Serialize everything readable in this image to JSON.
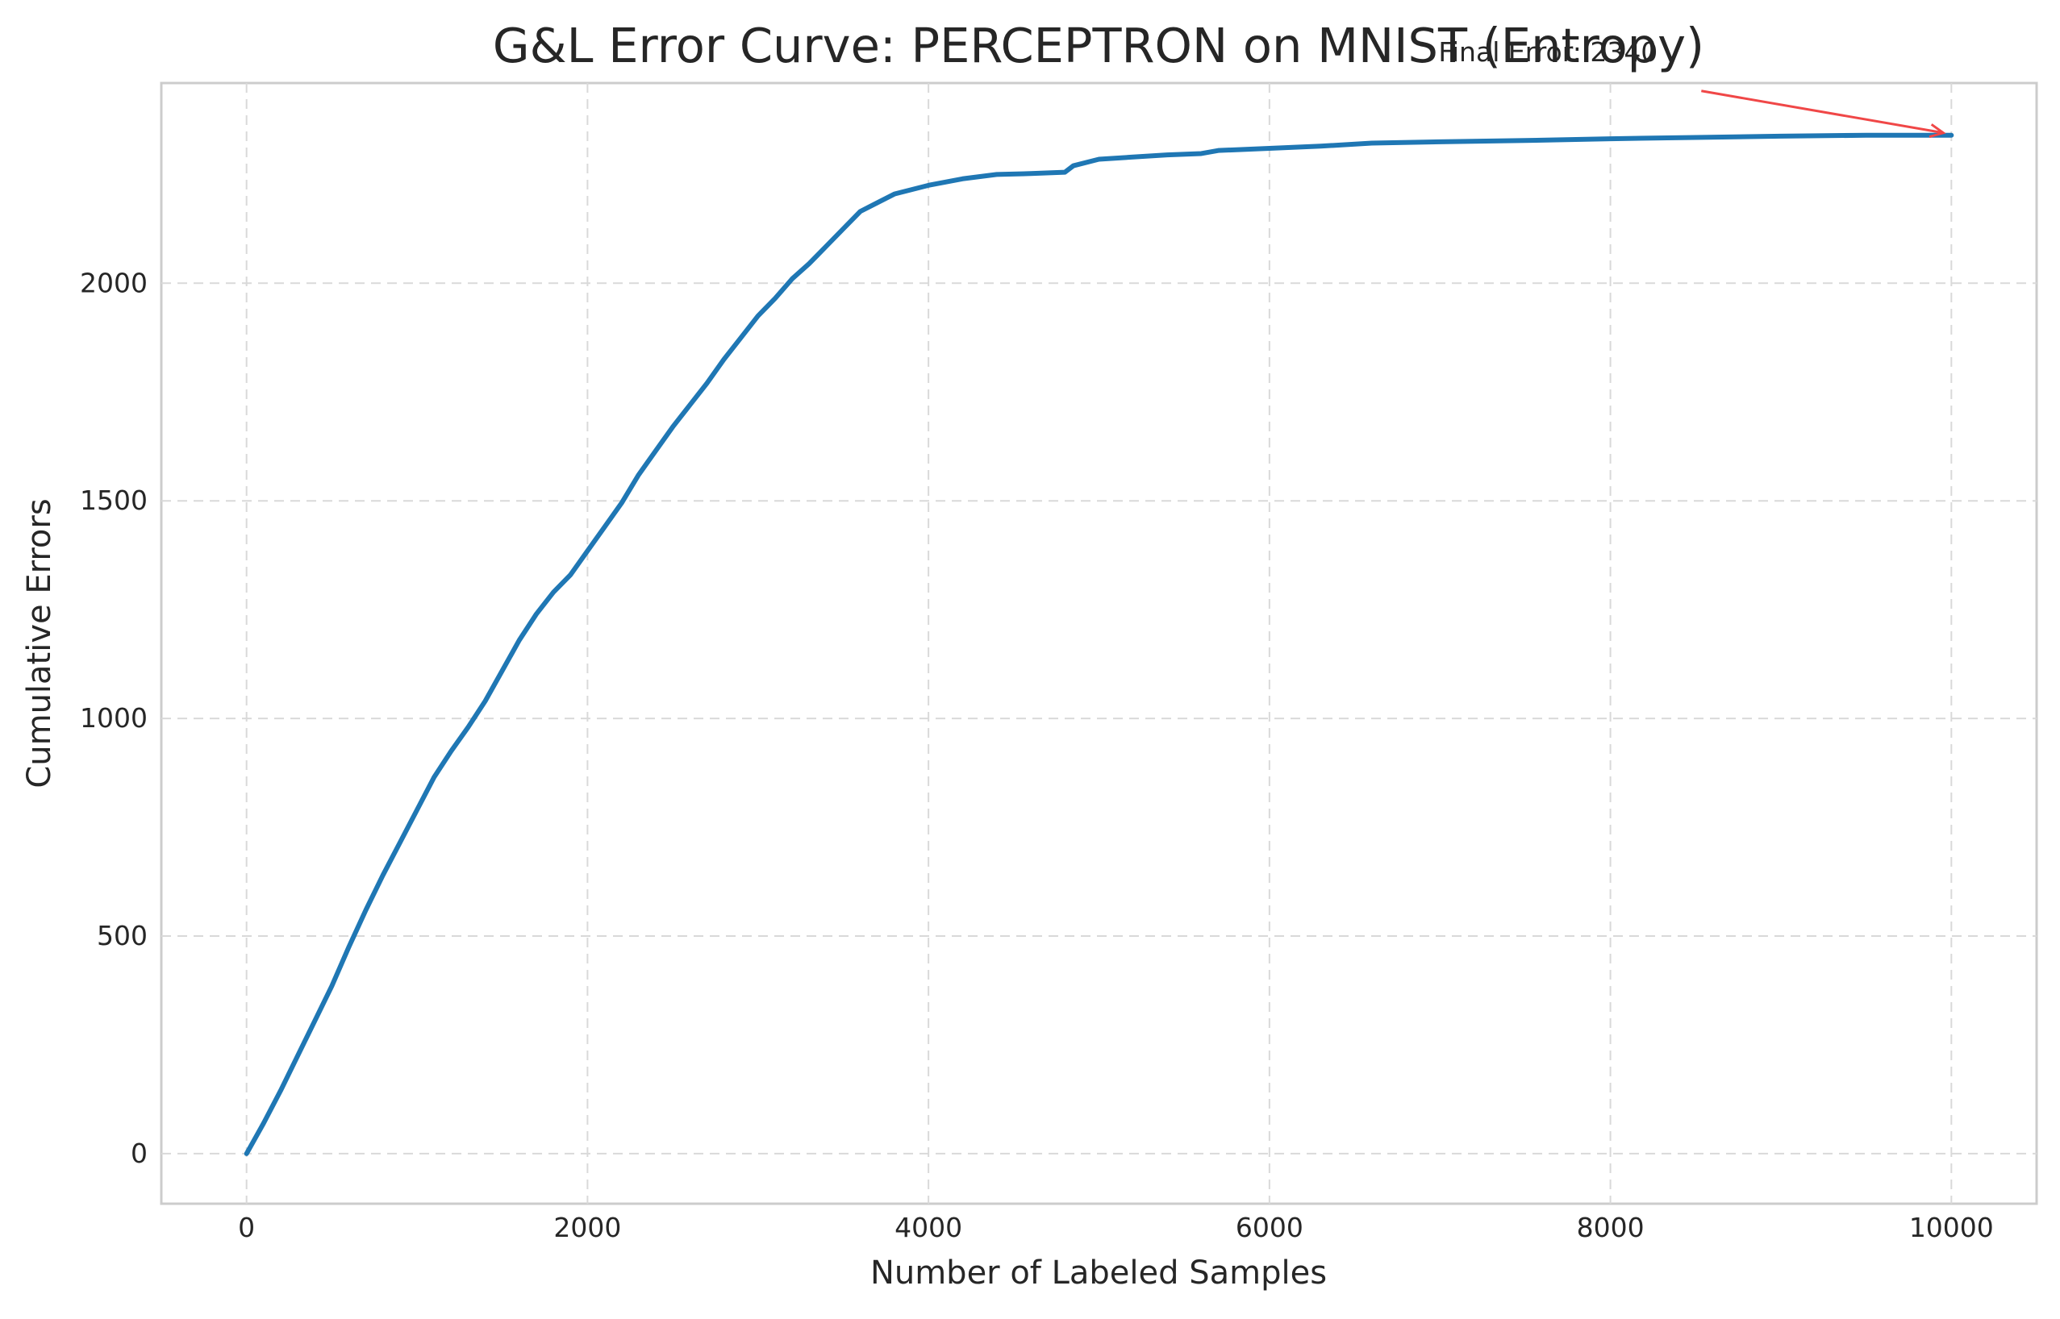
{
  "colors": {
    "series": "#1f77b4",
    "annotation": "#f04747"
  },
  "chart_data": {
    "type": "line",
    "title": "G&L Error Curve: PERCEPTRON on MNIST (Entropy)",
    "xlabel": "Number of Labeled Samples",
    "ylabel": "Cumulative Errors",
    "xlim": [
      -500,
      10500
    ],
    "ylim": [
      -115,
      2460
    ],
    "grid": true,
    "legend": "none",
    "x_ticks": [
      0,
      2000,
      4000,
      6000,
      8000,
      10000
    ],
    "x_tick_labels": [
      "0",
      "2000",
      "4000",
      "6000",
      "8000",
      "10000"
    ],
    "y_ticks": [
      0,
      500,
      1000,
      1500,
      2000
    ],
    "y_tick_labels": [
      "0",
      "500",
      "1000",
      "1500",
      "2000"
    ],
    "series": [
      {
        "x": [
          0,
          100,
          200,
          300,
          400,
          500,
          600,
          700,
          800,
          900,
          1000,
          1100,
          1200,
          1300,
          1400,
          1500,
          1600,
          1700,
          1800,
          1900,
          2000,
          2100,
          2200,
          2300,
          2400,
          2500,
          2600,
          2700,
          2800,
          2900,
          3000,
          3100,
          3200,
          3300,
          3400,
          3500,
          3600,
          3700,
          3800,
          3900,
          4000,
          4200,
          4400,
          4600,
          4800,
          4850,
          5000,
          5200,
          5400,
          5600,
          5700,
          6000,
          6300,
          6600,
          7000,
          7500,
          8000,
          8500,
          9000,
          9500,
          10000
        ],
        "y": [
          0,
          70,
          145,
          225,
          305,
          385,
          475,
          560,
          640,
          715,
          790,
          865,
          925,
          980,
          1040,
          1110,
          1180,
          1240,
          1290,
          1330,
          1385,
          1440,
          1495,
          1560,
          1615,
          1670,
          1720,
          1770,
          1825,
          1875,
          1925,
          1965,
          2010,
          2045,
          2085,
          2125,
          2165,
          2185,
          2205,
          2215,
          2225,
          2240,
          2250,
          2252,
          2255,
          2270,
          2285,
          2290,
          2295,
          2298,
          2305,
          2310,
          2315,
          2322,
          2325,
          2328,
          2332,
          2335,
          2338,
          2340,
          2340
        ]
      }
    ],
    "annotations": [
      {
        "text": "Final Error: 2340",
        "point": [
          10000,
          2340
        ]
      }
    ]
  }
}
